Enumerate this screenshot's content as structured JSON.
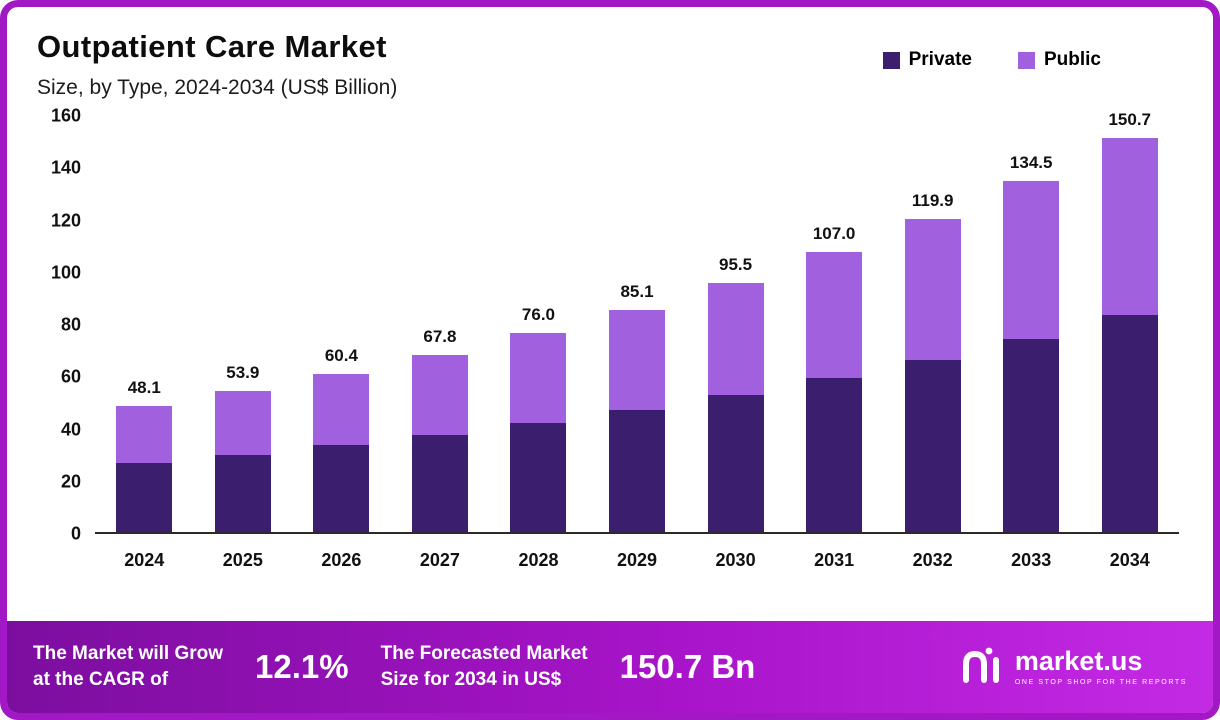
{
  "header": {
    "title": "Outpatient Care Market",
    "subtitle": "Size, by Type, 2024-2034 (US$ Billion)"
  },
  "chart_data": {
    "type": "bar",
    "stacked": true,
    "title": "Outpatient Care Market",
    "subtitle": "Size, by Type, 2024-2034 (US$ Billion)",
    "categories": [
      "2024",
      "2025",
      "2026",
      "2027",
      "2028",
      "2029",
      "2030",
      "2031",
      "2032",
      "2033",
      "2034"
    ],
    "series": [
      {
        "name": "Private",
        "color": "#3b1e6e",
        "values": [
          26.5,
          29.6,
          33.2,
          37.3,
          41.8,
          46.8,
          52.5,
          58.9,
          65.9,
          74.0,
          82.9
        ]
      },
      {
        "name": "Public",
        "color": "#a160dd",
        "values": [
          21.6,
          24.3,
          27.2,
          30.5,
          34.2,
          38.3,
          43.0,
          48.1,
          54.0,
          60.5,
          67.8
        ]
      }
    ],
    "totals": [
      48.1,
      53.9,
      60.4,
      67.8,
      76.0,
      85.1,
      95.5,
      107.0,
      119.9,
      134.5,
      150.7
    ],
    "ylim": [
      0,
      160
    ],
    "yticks": [
      0,
      20,
      40,
      60,
      80,
      100,
      120,
      140,
      160
    ],
    "grid": false,
    "legend_position": "top-right"
  },
  "footer": {
    "cagr_label": "The Market will Grow\nat the CAGR of",
    "cagr_value": "12.1%",
    "forecast_label": "The Forecasted Market\nSize for 2034 in US$",
    "forecast_value": "150.7 Bn",
    "brand_name": "market.us",
    "brand_tagline": "ONE STOP SHOP FOR THE REPORTS"
  }
}
